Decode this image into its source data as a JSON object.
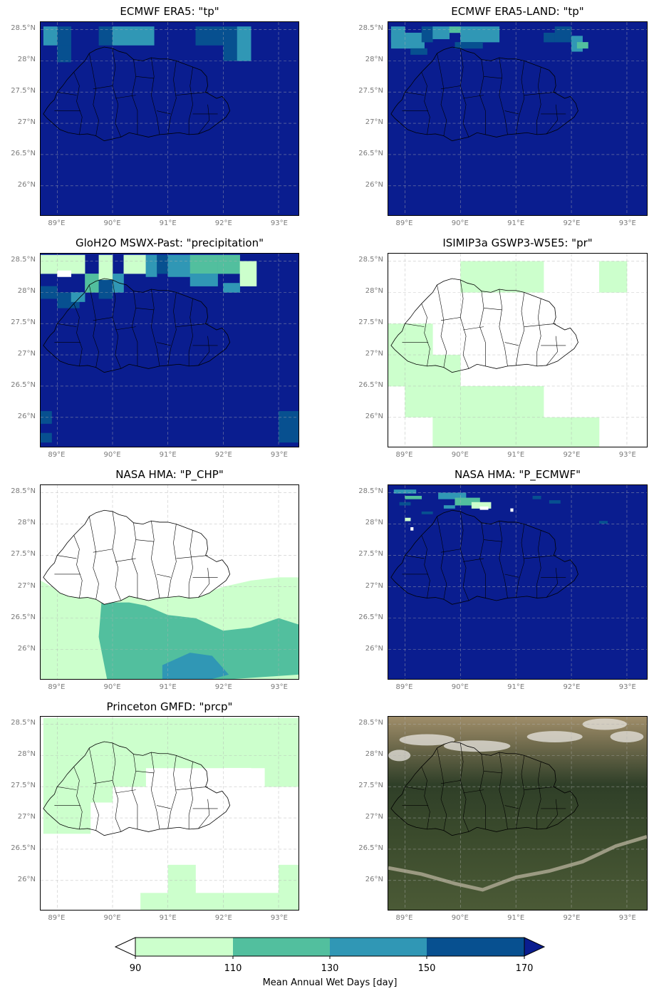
{
  "panels": [
    {
      "title": "ECMWF ERA5: \"tp\"",
      "fill": "mostly-170",
      "pattern": "era5"
    },
    {
      "title": "ECMWF ERA5-LAND: \"tp\"",
      "fill": "mostly-170",
      "pattern": "era5land"
    },
    {
      "title": "GloH2O MSWX-Past: \"precipitation\"",
      "fill": "mostly-170",
      "pattern": "mswx"
    },
    {
      "title": "ISIMIP3a GSWP3-W5E5: \"pr\"",
      "fill": "mostly-empty",
      "pattern": "isimip"
    },
    {
      "title": "NASA HMA: \"P_CHP\"",
      "fill": "south-90-110",
      "pattern": "chp"
    },
    {
      "title": "NASA HMA: \"P_ECMWF\"",
      "fill": "mostly-170",
      "pattern": "hma_ecmwf"
    },
    {
      "title": "Princeton GMFD: \"prcp\"",
      "fill": "north-90",
      "pattern": "gmfd"
    },
    {
      "title": "",
      "fill": "satellite",
      "pattern": "satellite"
    }
  ],
  "lat_ticks": [
    "28.5°N",
    "28°N",
    "27.5°N",
    "27°N",
    "26.5°N",
    "26°N"
  ],
  "lon_ticks": [
    "89°E",
    "90°E",
    "91°E",
    "92°E",
    "93°E"
  ],
  "colorbar": {
    "ticks": [
      "90",
      "110",
      "130",
      "150",
      "170"
    ],
    "label": "Mean Annual Wet Days [day]",
    "colors": [
      "#ccffcc",
      "#52bf9e",
      "#3097b5",
      "#075090",
      "#0a1d8f"
    ],
    "under_color": "#ffffff",
    "over_color": "#0a1d8f"
  }
}
